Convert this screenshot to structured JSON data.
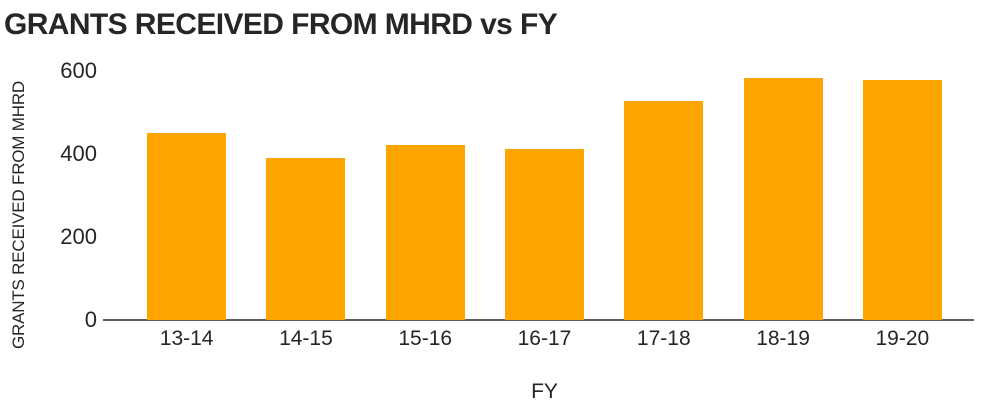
{
  "chart_data": {
    "type": "bar",
    "title": "GRANTS RECEIVED FROM MHRD vs FY",
    "xlabel": "FY",
    "ylabel": "GRANTS RECEIVED FROM MHRD",
    "categories": [
      "13-14",
      "14-15",
      "15-16",
      "16-17",
      "17-18",
      "18-19",
      "19-20"
    ],
    "values": [
      450,
      392,
      422,
      412,
      528,
      585,
      580
    ],
    "ylim": [
      0,
      620
    ],
    "yticks": [
      0,
      200,
      400,
      600
    ],
    "bar_color": "#ffa500",
    "axis_line_color": "#5e5e5e",
    "text_color": "#262626",
    "background": "#ffffff",
    "grid": false,
    "legend": false
  }
}
